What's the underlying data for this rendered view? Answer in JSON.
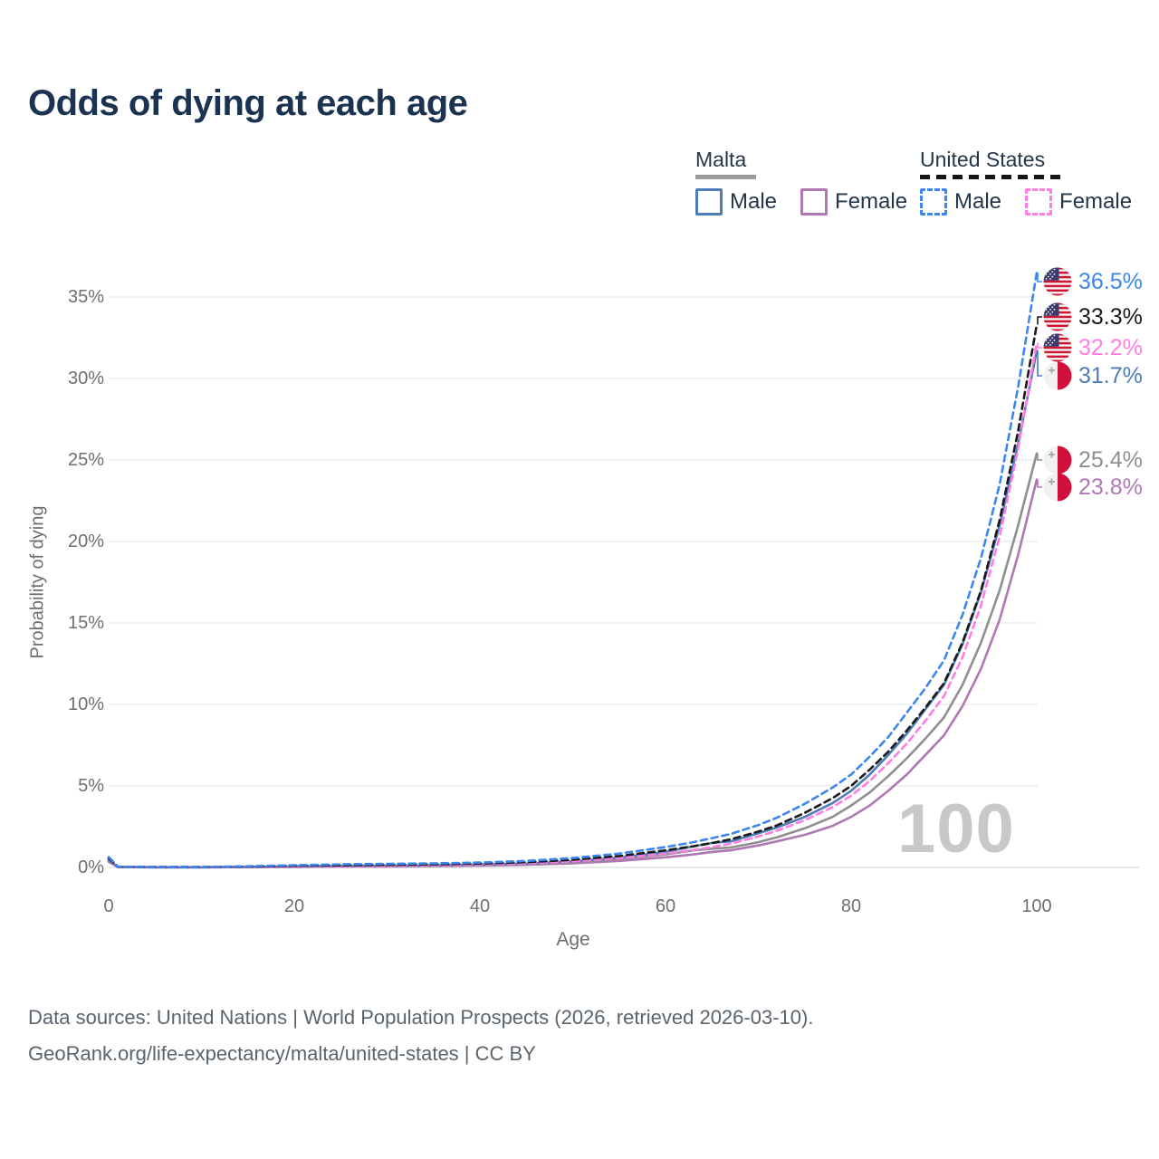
{
  "title": "Odds of dying at each age",
  "legend": {
    "groups": [
      {
        "name": "Malta",
        "items": [
          {
            "label": "Male"
          },
          {
            "label": "Female"
          }
        ]
      },
      {
        "name": "United States",
        "items": [
          {
            "label": "Male"
          },
          {
            "label": "Female"
          }
        ]
      }
    ]
  },
  "axes": {
    "y_title": "Probability of dying",
    "x_title": "Age",
    "y_ticks": [
      "0%",
      "5%",
      "10%",
      "15%",
      "20%",
      "25%",
      "30%",
      "35%"
    ],
    "x_ticks": [
      "0",
      "20",
      "40",
      "60",
      "80",
      "100"
    ]
  },
  "watermark": "100",
  "end_labels": [
    {
      "icon": "us-flag-icon",
      "text": "36.5%",
      "value": 36.5,
      "color": "#3b86f0"
    },
    {
      "icon": "us-flag-icon",
      "text": "33.3%",
      "value": 33.3,
      "color": "#1a1a1a"
    },
    {
      "icon": "us-flag-icon",
      "text": "32.2%",
      "value": 32.2,
      "color": "#ff7de4"
    },
    {
      "icon": "malta-flag-icon",
      "text": "31.7%",
      "value": 31.7,
      "color": "#4d7cb8"
    },
    {
      "icon": "malta-flag-icon",
      "text": "25.4%",
      "value": 25.4,
      "color": "#8f8f8f"
    },
    {
      "icon": "malta-flag-icon",
      "text": "23.8%",
      "value": 23.8,
      "color": "#b077b5"
    }
  ],
  "footer": {
    "line1": "Data sources: United Nations | World Population Prospects (2026, retrieved 2026-03-10).",
    "line2": "GeoRank.org/life-expectancy/malta/united-states | CC BY"
  },
  "chart_data": {
    "type": "line",
    "title": "Odds of dying at each age",
    "xlabel": "Age",
    "ylabel": "Probability of dying",
    "xlim": [
      0,
      100
    ],
    "ylim": [
      0,
      37
    ],
    "y_unit": "%",
    "grid": "horizontal",
    "x": [
      0,
      1,
      5,
      10,
      15,
      20,
      25,
      30,
      35,
      40,
      45,
      50,
      55,
      60,
      63,
      65,
      67,
      70,
      72,
      75,
      78,
      80,
      82,
      84,
      86,
      88,
      90,
      92,
      94,
      96,
      98,
      100
    ],
    "series": [
      {
        "name": "United States Male",
        "country": "United States",
        "sex": "male",
        "style": "dashed",
        "color": "#3b86f0",
        "end_value": 36.5,
        "values": [
          0.64,
          0.05,
          0.02,
          0.02,
          0.07,
          0.14,
          0.19,
          0.22,
          0.25,
          0.3,
          0.4,
          0.58,
          0.85,
          1.25,
          1.55,
          1.8,
          2.05,
          2.6,
          3.05,
          3.9,
          4.9,
          5.7,
          6.8,
          8.0,
          9.5,
          11.0,
          12.7,
          15.5,
          19.0,
          23.5,
          29.5,
          36.5
        ]
      },
      {
        "name": "United States Both sexes",
        "country": "United States",
        "sex": "both",
        "style": "dashed",
        "color": "#1a1a1a",
        "end_value": 33.3,
        "values": [
          0.56,
          0.04,
          0.02,
          0.02,
          0.05,
          0.1,
          0.13,
          0.16,
          0.19,
          0.24,
          0.32,
          0.47,
          0.7,
          1.05,
          1.3,
          1.5,
          1.72,
          2.2,
          2.58,
          3.35,
          4.25,
          5.0,
          6.0,
          7.1,
          8.4,
          9.8,
          11.3,
          13.8,
          17.0,
          21.3,
          26.8,
          33.3
        ]
      },
      {
        "name": "United States Female",
        "country": "United States",
        "sex": "female",
        "style": "dashed",
        "color": "#ff7de4",
        "end_value": 32.2,
        "values": [
          0.52,
          0.04,
          0.02,
          0.02,
          0.03,
          0.06,
          0.08,
          0.1,
          0.13,
          0.18,
          0.25,
          0.38,
          0.57,
          0.85,
          1.07,
          1.25,
          1.45,
          1.9,
          2.25,
          2.9,
          3.7,
          4.4,
          5.3,
          6.4,
          7.6,
          9.0,
          10.5,
          12.9,
          16.1,
          20.3,
          25.7,
          32.2
        ]
      },
      {
        "name": "Malta Male",
        "country": "Malta",
        "sex": "male",
        "style": "solid",
        "color": "#4d7cb8",
        "end_value": 31.7,
        "values": [
          0.45,
          0.03,
          0.01,
          0.01,
          0.03,
          0.06,
          0.08,
          0.1,
          0.13,
          0.17,
          0.24,
          0.38,
          0.6,
          0.95,
          1.3,
          1.5,
          1.6,
          2.1,
          2.45,
          3.1,
          3.95,
          4.7,
          5.7,
          6.9,
          8.2,
          9.7,
          11.2,
          13.7,
          16.9,
          21.0,
          26.0,
          31.7
        ]
      },
      {
        "name": "Malta Both sexes",
        "country": "Malta",
        "sex": "both",
        "style": "solid",
        "color": "#8f8f8f",
        "end_value": 25.4,
        "values": [
          0.4,
          0.03,
          0.01,
          0.01,
          0.02,
          0.05,
          0.07,
          0.09,
          0.11,
          0.15,
          0.21,
          0.33,
          0.52,
          0.8,
          1.05,
          1.15,
          1.22,
          1.55,
          1.85,
          2.4,
          3.1,
          3.8,
          4.6,
          5.6,
          6.7,
          7.9,
          9.2,
          11.2,
          13.8,
          17.0,
          21.0,
          25.4
        ]
      },
      {
        "name": "Malta Female",
        "country": "Malta",
        "sex": "female",
        "style": "solid",
        "color": "#b077b5",
        "end_value": 23.8,
        "values": [
          0.35,
          0.02,
          0.01,
          0.01,
          0.02,
          0.03,
          0.05,
          0.06,
          0.08,
          0.11,
          0.16,
          0.25,
          0.4,
          0.62,
          0.8,
          0.95,
          1.05,
          1.35,
          1.6,
          2.0,
          2.55,
          3.1,
          3.8,
          4.7,
          5.7,
          6.9,
          8.1,
          9.9,
          12.2,
          15.2,
          19.2,
          23.8
        ]
      }
    ]
  }
}
